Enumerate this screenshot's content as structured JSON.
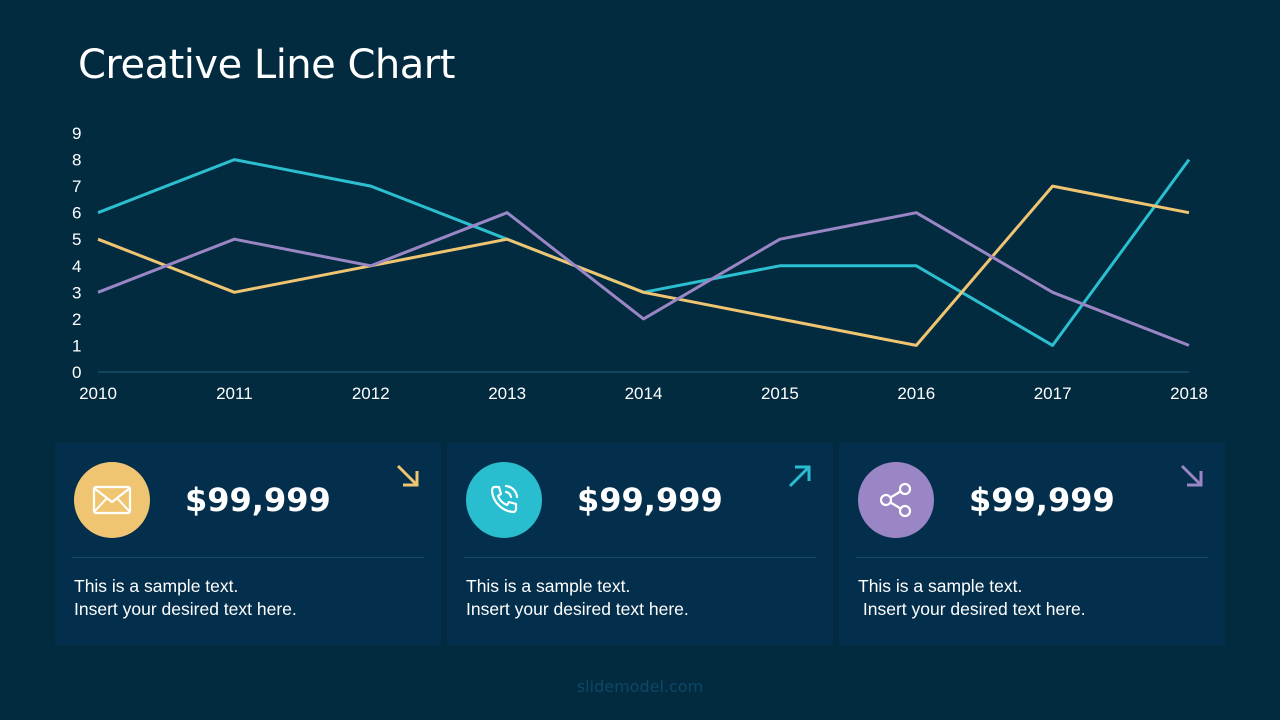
{
  "title": "Creative Line Chart",
  "chart_data": {
    "type": "line",
    "x": [
      "2010",
      "2011",
      "2012",
      "2013",
      "2014",
      "2015",
      "2016",
      "2017",
      "2018"
    ],
    "series": [
      {
        "values": [
          6,
          8,
          7,
          5,
          3,
          4,
          4,
          1,
          8
        ],
        "color": "#2bbfcf"
      },
      {
        "values": [
          5,
          3,
          4,
          5,
          3,
          2,
          1,
          7,
          6
        ],
        "color": "#f0c572"
      },
      {
        "values": [
          3,
          5,
          4,
          6,
          2,
          5,
          6,
          3,
          1
        ],
        "color": "#9a86c4"
      }
    ],
    "ylim": [
      0,
      9
    ],
    "yticks": [
      "0",
      "1",
      "2",
      "3",
      "4",
      "5",
      "6",
      "7",
      "8",
      "9"
    ],
    "grid": false,
    "legend": false
  },
  "cards": [
    {
      "icon": "envelope-icon",
      "color": "#f0c572",
      "amount": "$99,999",
      "trend": "down-right",
      "line1": "This is a sample text.",
      "line2": "Insert your desired text here."
    },
    {
      "icon": "phone-icon",
      "color": "#28bdcf",
      "amount": "$99,999",
      "trend": "up-right",
      "line1": "This is a sample text.",
      "line2": "Insert your desired text here."
    },
    {
      "icon": "share-icon",
      "color": "#9a86c4",
      "amount": "$99,999",
      "trend": "down-right",
      "line1": "This is a sample text.",
      "line2": " Insert your desired text here."
    }
  ],
  "footer": "slidemodel.com"
}
